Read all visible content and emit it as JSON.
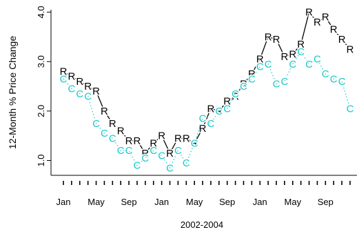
{
  "chart_data": {
    "type": "line",
    "xlabel": "2002-2004",
    "ylabel": "12-Month % Price Change",
    "ylim": [
      0.7,
      4.05
    ],
    "yticks": [
      1.0,
      2.0,
      3.0,
      4.0
    ],
    "yticklabels": [
      "1.0",
      "2.0",
      "3.0",
      "4.0"
    ],
    "months": [
      "2002-01",
      "2002-02",
      "2002-03",
      "2002-04",
      "2002-05",
      "2002-06",
      "2002-07",
      "2002-08",
      "2002-09",
      "2002-10",
      "2002-11",
      "2002-12",
      "2003-01",
      "2003-02",
      "2003-03",
      "2003-04",
      "2003-05",
      "2003-06",
      "2003-07",
      "2003-08",
      "2003-09",
      "2003-10",
      "2003-11",
      "2003-12",
      "2004-01",
      "2004-02",
      "2004-03",
      "2004-04",
      "2004-05",
      "2004-06",
      "2004-07",
      "2004-08",
      "2004-09",
      "2004-10",
      "2004-11",
      "2004-12"
    ],
    "xticklabels": [
      {
        "month": "2002-01",
        "label": "Jan"
      },
      {
        "month": "2002-05",
        "label": "May"
      },
      {
        "month": "2002-09",
        "label": "Sep"
      },
      {
        "month": "2003-01",
        "label": "Jan"
      },
      {
        "month": "2003-05",
        "label": "May"
      },
      {
        "month": "2003-09",
        "label": "Sep"
      },
      {
        "month": "2004-01",
        "label": "Jan"
      },
      {
        "month": "2004-05",
        "label": "May"
      },
      {
        "month": "2004-09",
        "label": "Sep"
      }
    ],
    "series": [
      {
        "marker": "R",
        "color": "#000000",
        "line_style": "solid",
        "values": [
          2.8,
          2.7,
          2.6,
          2.5,
          2.4,
          2.0,
          1.75,
          1.6,
          1.4,
          1.4,
          1.15,
          1.35,
          1.5,
          1.15,
          1.45,
          1.45,
          1.35,
          1.65,
          2.05,
          2.0,
          2.2,
          2.3,
          2.55,
          2.75,
          3.05,
          3.5,
          3.45,
          3.1,
          3.15,
          3.35,
          4.0,
          3.8,
          3.9,
          3.65,
          3.45,
          3.25
        ]
      },
      {
        "marker": "C",
        "color": "#19c8c8",
        "line_style": "dotted",
        "values": [
          2.65,
          2.45,
          2.35,
          2.3,
          1.75,
          1.55,
          1.45,
          1.2,
          1.2,
          0.9,
          1.05,
          1.2,
          1.1,
          0.85,
          1.2,
          0.95,
          1.35,
          1.85,
          1.75,
          2.0,
          2.05,
          2.35,
          2.5,
          2.65,
          2.9,
          2.95,
          2.55,
          2.6,
          2.95,
          3.2,
          2.95,
          3.05,
          2.75,
          2.65,
          2.6,
          2.05
        ]
      }
    ],
    "grid": false,
    "legend": "none"
  }
}
